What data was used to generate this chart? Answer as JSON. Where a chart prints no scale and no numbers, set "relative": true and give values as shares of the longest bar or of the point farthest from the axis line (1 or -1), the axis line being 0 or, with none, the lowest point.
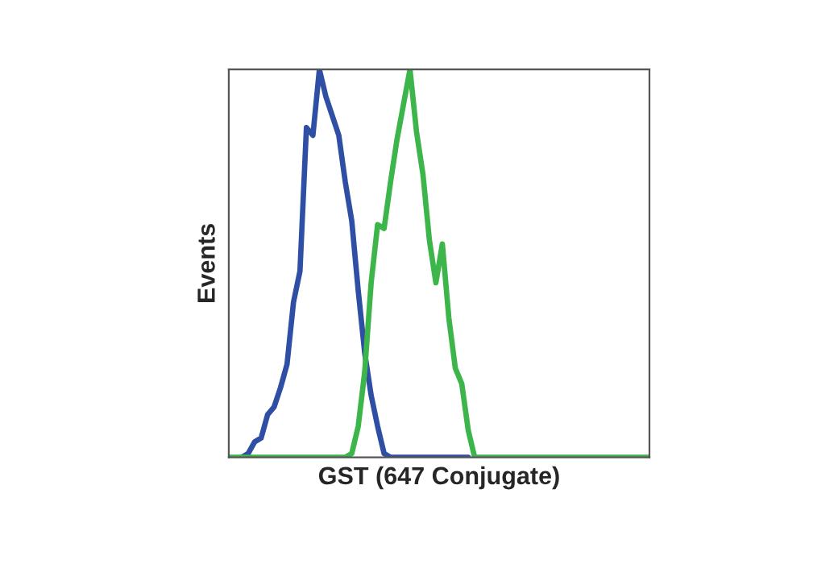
{
  "chart_data": {
    "type": "line",
    "relative": true,
    "xlabel": "GST (647 Conjugate)",
    "ylabel": "Events",
    "legend": false,
    "marker": "none",
    "line_style": "solid",
    "categories": [
      null,
      null,
      null,
      null,
      null,
      null,
      null,
      null,
      null,
      null,
      null,
      null,
      null,
      null,
      null,
      null,
      null,
      null,
      null,
      null,
      null,
      null,
      null,
      null,
      null,
      null,
      null,
      null,
      null,
      null,
      null,
      null,
      null,
      null,
      null,
      null,
      null,
      null,
      null,
      null,
      null,
      null,
      null,
      null,
      null,
      null,
      null,
      null,
      null,
      null,
      null,
      null,
      null,
      null,
      null,
      null,
      null,
      null,
      null,
      null,
      null,
      null,
      null,
      null,
      null,
      null
    ],
    "series": [
      {
        "color": "#2e4fa3",
        "values": [
          null,
          null,
          0,
          0.01,
          0.04,
          0.05,
          0.11,
          0.13,
          0.18,
          0.24,
          0.4,
          0.48,
          0.85,
          0.83,
          1.0,
          0.93,
          0.88,
          0.83,
          0.71,
          0.61,
          0.43,
          0.27,
          0.16,
          0.08,
          0.01,
          0,
          0,
          0,
          0,
          0,
          0,
          0,
          0,
          0,
          0,
          0,
          0,
          0,
          null,
          null,
          null,
          null,
          null,
          null,
          null,
          null,
          null,
          null,
          null,
          null,
          null,
          null,
          null,
          null,
          null,
          null,
          null,
          null,
          null,
          null,
          null,
          null,
          null,
          null,
          null,
          null
        ]
      },
      {
        "color": "#3cb54a",
        "values": [
          0,
          0,
          0,
          0,
          0,
          0,
          0,
          0,
          0,
          0,
          0,
          0,
          0,
          0,
          0,
          0,
          0,
          0,
          0,
          0.01,
          0.08,
          0.22,
          0.45,
          0.6,
          0.59,
          0.71,
          0.82,
          0.91,
          1.0,
          0.84,
          0.73,
          0.56,
          0.45,
          0.55,
          0.36,
          0.23,
          0.19,
          0.07,
          0,
          0,
          0,
          0,
          0,
          0,
          0,
          0,
          0,
          0,
          0,
          0,
          0,
          0,
          0,
          0,
          0,
          0,
          0,
          0,
          0,
          0,
          0,
          0,
          0,
          0,
          0,
          0
        ]
      }
    ]
  }
}
